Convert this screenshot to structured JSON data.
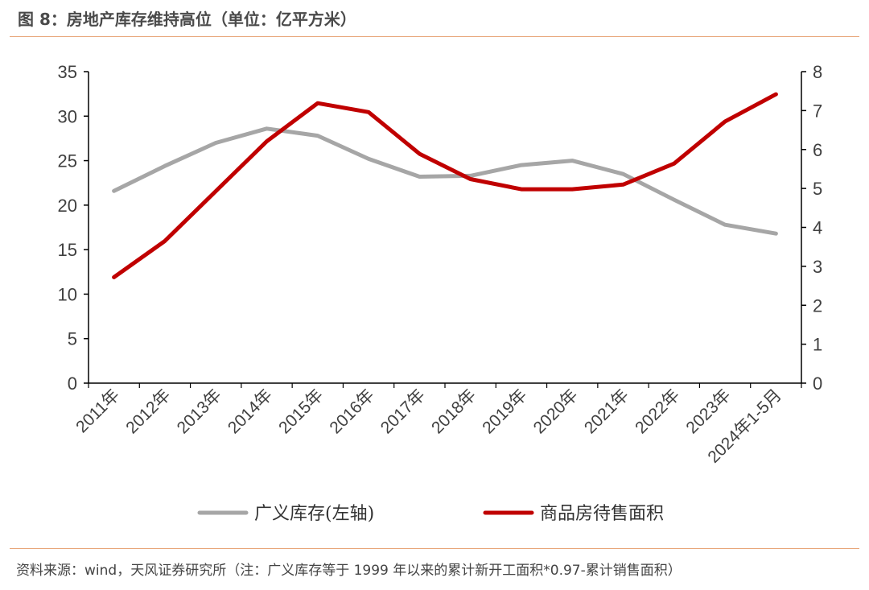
{
  "header": {
    "title": "图 8：房地产库存维持高位（单位：亿平方米）"
  },
  "footer": {
    "source": "资料来源：wind，天风证券研究所（注：广义库存等于 1999 年以来的累计新开工面积*0.97-累计销售面积）"
  },
  "colors": {
    "series_gray": "#a6a6a6",
    "series_red": "#c00000",
    "rule": "#e8a67a",
    "axis": "#000000"
  },
  "chart_data": {
    "type": "line",
    "title": "",
    "categories": [
      "2011年",
      "2012年",
      "2013年",
      "2014年",
      "2015年",
      "2016年",
      "2017年",
      "2018年",
      "2019年",
      "2020年",
      "2021年",
      "2022年",
      "2023年",
      "2024年1-5月"
    ],
    "y_left": {
      "ylim": [
        0,
        35
      ],
      "ticks": [
        "0",
        "5",
        "10",
        "15",
        "20",
        "25",
        "30",
        "35"
      ]
    },
    "y_right": {
      "ylim": [
        0,
        8
      ],
      "ticks": [
        "0",
        "1",
        "2",
        "3",
        "4",
        "5",
        "6",
        "7",
        "8"
      ]
    },
    "grid": false,
    "legend_position": "bottom",
    "series": [
      {
        "name": "广义库存(左轴)",
        "axis": "left",
        "color": "#a6a6a6",
        "values": [
          21.6,
          24.4,
          27.0,
          28.6,
          27.8,
          25.2,
          23.2,
          23.3,
          24.5,
          25.0,
          23.5,
          20.6,
          17.8,
          16.8
        ]
      },
      {
        "name": "商品房待售面积",
        "axis": "right",
        "color": "#c00000",
        "values": [
          2.72,
          3.65,
          4.93,
          6.21,
          7.19,
          6.96,
          5.89,
          5.24,
          4.98,
          4.98,
          5.1,
          5.64,
          6.72,
          7.42
        ]
      }
    ]
  }
}
